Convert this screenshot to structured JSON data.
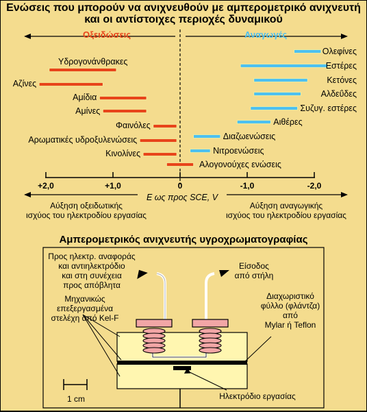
{
  "title": {
    "line1": "Ενώσεις που μπορούν να ανιχνευθούν με αμπερομετρικό ανιχνευτή",
    "line2": "και οι αντίστοιχες περιοχές δυναμικού"
  },
  "regions": {
    "oxidation": "Οξειδώσεις",
    "reduction": "Αναγωγές"
  },
  "chart_data": {
    "type": "range",
    "xlabel": "E ως προς SCE, V",
    "xlim": [
      2.0,
      -2.0
    ],
    "ticks": [
      "+2,0",
      "+1,0",
      "0",
      "-1,0",
      "-2,0"
    ],
    "oxidation_series": [
      {
        "label": "Υδρογονάνθρακες",
        "start": 1.95,
        "end": 0.95
      },
      {
        "label": "Αζίνες",
        "start": 2.1,
        "end": 1.15
      },
      {
        "label": "Αμίδια",
        "start": 1.2,
        "end": 0.5
      },
      {
        "label": "Αμίνες",
        "start": 1.15,
        "end": 0.5
      },
      {
        "label": "Φαινόλες",
        "start": 0.4,
        "end": 0.05
      },
      {
        "label": "Αρωματικές υδροξυλενώσεις",
        "start": 0.6,
        "end": 0.05
      },
      {
        "label": "Κινολίνες",
        "start": 0.55,
        "end": 0.05
      },
      {
        "label": "Αλογονούχες ενώσεις",
        "start": 0.2,
        "end": -0.2
      }
    ],
    "reduction_series": [
      {
        "label": "Ολεφίνες",
        "start": -1.7,
        "end": -2.1
      },
      {
        "label": "Εστέρες",
        "start": -0.9,
        "end": -2.2
      },
      {
        "label": "Κετόνες",
        "start": -1.1,
        "end": -1.9
      },
      {
        "label": "Αλδεΰδες",
        "start": -1.1,
        "end": -1.8
      },
      {
        "label": "Συζυγ. εστέρες",
        "start": -1.05,
        "end": -1.75
      },
      {
        "label": "Αιθέρες",
        "start": -0.85,
        "end": -1.35
      },
      {
        "label": "Διαζωενώσεις",
        "start": -0.2,
        "end": -0.6
      },
      {
        "label": "Νιτροενώσεις",
        "start": -0.15,
        "end": -0.45
      }
    ],
    "colors": {
      "oxidation": "#e8441a",
      "reduction": "#4dc0f0"
    }
  },
  "axis_notes": {
    "left_line1": "Αύξηση οξειδωτικής",
    "left_line2": "ισχύος του ηλεκτροδίου εργασίας",
    "right_line1": "Αύξηση αναγωγικής",
    "right_line2": "ισχύος του ηλεκτροδίου εργασίας"
  },
  "diagram": {
    "title": "Αμπερομετρικός ανιχνευτής υγροχρωματογραφίας",
    "label_outlet": [
      "Προς ηλεκτρ. αναφοράς",
      "και αντιηλεκτρόδιο",
      "και στη συνέχεια",
      "προς απόβλητα"
    ],
    "label_inlet": [
      "Είσοδος",
      "από στήλη"
    ],
    "label_blocks": [
      "Μηχανικώς",
      "επεξεργασμένα",
      "στελέχη από Kel-F"
    ],
    "label_gasket": [
      "Διαχωριστικό",
      "φύλλο (φλάντζα)",
      "από",
      "Mylar ή Teflon"
    ],
    "scale": "1 cm",
    "electrode": "Ηλεκτρόδιο εργασίας"
  }
}
